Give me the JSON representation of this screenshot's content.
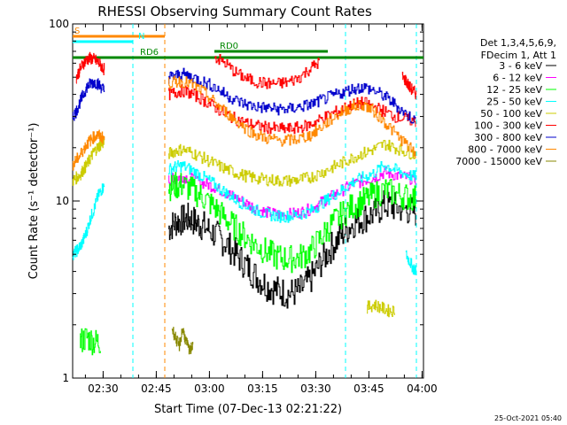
{
  "chart_data": {
    "type": "line",
    "title": "RHESSI Observing Summary Count Rates",
    "xlabel": "Start Time (07-Dec-13 02:21:22)",
    "ylabel": "Count Rate (s⁻¹ detector⁻¹)",
    "yscale": "log",
    "ylim": [
      1,
      100
    ],
    "xlim_minutes": [
      0,
      99
    ],
    "x_tick_labels": [
      "02:30",
      "02:45",
      "03:00",
      "03:15",
      "03:30",
      "03:45",
      "04:00"
    ],
    "y_tick_labels": [
      "1",
      "10",
      "100"
    ],
    "legend_header": [
      "Det 1,3,4,5,6,9,",
      "FDecim 1, Att 1"
    ],
    "legend_position": "right",
    "footer_timestamp": "25-Oct-2021 05:40",
    "series": [
      {
        "name": "3 - 6 keV",
        "color": "#000000",
        "segments": [
          {
            "x": [
              0,
              3,
              5,
              7,
              9,
              10
            ],
            "y": [
              null,
              null,
              null,
              null,
              null,
              null
            ]
          },
          {
            "x": [
              27,
              29,
              31,
              33,
              35,
              37,
              40,
              43,
              46,
              49,
              52,
              55,
              58,
              61,
              64,
              67,
              70,
              73,
              76,
              79,
              82,
              85,
              88,
              91,
              94,
              97
            ],
            "y": [
              7,
              7.6,
              7.8,
              8,
              7.5,
              7.2,
              6.5,
              5.8,
              5.0,
              4.3,
              3.7,
              3.3,
              3.1,
              3.0,
              3.1,
              3.6,
              4.5,
              5.5,
              6.5,
              7.5,
              8.0,
              8.5,
              9.5,
              9.2,
              9.0,
              8.6
            ]
          }
        ]
      },
      {
        "name": "6 - 12 keV",
        "color": "#ff00ff",
        "segments": [
          {
            "x": [
              27,
              29,
              31,
              34,
              37,
              40,
              43,
              46,
              49,
              52,
              55,
              58,
              61,
              64,
              67,
              70,
              73,
              76,
              79,
              82,
              85,
              88,
              91,
              94,
              97
            ],
            "y": [
              13,
              13.5,
              13.8,
              13.2,
              12.6,
              12,
              11.2,
              10.4,
              9.7,
              9.0,
              8.6,
              8.4,
              8.4,
              8.6,
              9.0,
              9.8,
              10.6,
              11.5,
              12.4,
              13.0,
              13.6,
              14.5,
              14.0,
              13.6,
              13.2
            ]
          }
        ]
      },
      {
        "name": "12 - 25 keV",
        "color": "#00ff00",
        "segments": [
          {
            "x": [
              2,
              4,
              6,
              8
            ],
            "y": [
              1.6,
              1.7,
              1.6,
              1.6
            ]
          },
          {
            "x": [
              27,
              29,
              31,
              34,
              37,
              40,
              43,
              46,
              49,
              52,
              55,
              58,
              61,
              64,
              67,
              70,
              73,
              76,
              79,
              82,
              85,
              88,
              91,
              94,
              97
            ],
            "y": [
              12,
              12.2,
              12.3,
              11.4,
              10.4,
              9.2,
              8.0,
              7.0,
              6.2,
              5.6,
              5.1,
              4.8,
              4.7,
              4.8,
              5.2,
              6.2,
              7.4,
              8.4,
              9.4,
              10.0,
              10.8,
              11.5,
              11.0,
              10.6,
              10.3
            ]
          }
        ]
      },
      {
        "name": "25 - 50 keV",
        "color": "#00ffff",
        "segments": [
          {
            "x": [
              0,
              1,
              2,
              3,
              4,
              5,
              6,
              7,
              8,
              9
            ],
            "y": [
              5.0,
              5.2,
              5.5,
              6.0,
              6.8,
              8.0,
              9.0,
              10.5,
              11.5,
              12.2
            ]
          },
          {
            "x": [
              27,
              29,
              31,
              34,
              37,
              40,
              43,
              46,
              49,
              52,
              55,
              58,
              61,
              64,
              67,
              70,
              73,
              76,
              79,
              82,
              85,
              88,
              91,
              94,
              97
            ],
            "y": [
              15,
              15.6,
              15.8,
              14.8,
              13.6,
              12.4,
              11.2,
              10.2,
              9.4,
              8.8,
              8.4,
              8.2,
              8.2,
              8.4,
              8.8,
              9.6,
              10.6,
              11.6,
              12.8,
              13.6,
              14.4,
              16.0,
              15.0,
              14.2,
              13.6
            ]
          },
          {
            "x": [
              94,
              95,
              96,
              97
            ],
            "y": [
              5.0,
              4.6,
              4.2,
              4.0
            ]
          }
        ]
      },
      {
        "name": "50 - 100 keV",
        "color": "#cccc00",
        "segments": [
          {
            "x": [
              0,
              1,
              2,
              3,
              4,
              5,
              6,
              7,
              8,
              9
            ],
            "y": [
              13,
              13.5,
              14,
              15,
              16,
              17.5,
              19,
              20,
              21,
              21.5
            ]
          },
          {
            "x": [
              27,
              29,
              31,
              34,
              37,
              40,
              43,
              46,
              49,
              52,
              55,
              58,
              61,
              64,
              67,
              70,
              73,
              76,
              79,
              82,
              85,
              88,
              91,
              94,
              97
            ],
            "y": [
              18.5,
              19.2,
              19.6,
              18.6,
              17.4,
              16.2,
              15.2,
              14.4,
              13.8,
              13.4,
              13.2,
              13.0,
              13.0,
              13.2,
              13.6,
              14.4,
              15.4,
              16.4,
              17.6,
              18.6,
              19.6,
              21.0,
              20.0,
              19.0,
              18.2
            ]
          },
          {
            "x": [
              83,
              85,
              87,
              89,
              91
            ],
            "y": [
              2.5,
              2.6,
              2.5,
              2.4,
              2.4
            ]
          }
        ]
      },
      {
        "name": "100 - 300 keV",
        "color": "#ff0000",
        "segments": [
          {
            "x": [
              1,
              2,
              3,
              4,
              5,
              6,
              7,
              8,
              9
            ],
            "y": [
              50,
              55,
              60,
              63,
              64,
              63,
              61,
              58,
              55
            ]
          },
          {
            "x": [
              27,
              29,
              31,
              34,
              37,
              40,
              43,
              46,
              49,
              52,
              55,
              58,
              61,
              64,
              67,
              70,
              73,
              76,
              79,
              82,
              85,
              88,
              91,
              94,
              97
            ],
            "y": [
              40,
              41,
              42,
              40,
              37,
              34,
              31,
              29,
              27.5,
              26.5,
              26,
              25.5,
              25.5,
              26,
              27,
              29,
              31,
              33,
              35,
              36,
              34,
              32,
              30,
              29,
              28
            ]
          },
          {
            "x": [
              40,
              43,
              46,
              49,
              52,
              55,
              58,
              61,
              64,
              67,
              70
            ],
            "y": [
              65,
              60,
              53,
              49,
              47,
              46,
              46,
              47,
              50,
              56,
              62
            ]
          },
          {
            "x": [
              93,
              94,
              95,
              96,
              97
            ],
            "y": [
              50,
              48,
              44,
              42,
              40
            ]
          }
        ]
      },
      {
        "name": "300 - 800 keV",
        "color": "#0000cc",
        "segments": [
          {
            "x": [
              0,
              1,
              2,
              3,
              4,
              5,
              6,
              7,
              8,
              9
            ],
            "y": [
              30,
              32,
              36,
              40,
              44,
              46,
              47,
              46,
              44,
              42
            ]
          },
          {
            "x": [
              27,
              29,
              31,
              34,
              37,
              40,
              43,
              46,
              49,
              52,
              55,
              58,
              61,
              64,
              67,
              70,
              73,
              76,
              79,
              82,
              85,
              88,
              91,
              94,
              97
            ],
            "y": [
              50,
              51,
              52,
              50,
              47,
              44,
              40,
              37,
              35,
              34,
              33.5,
              33,
              33,
              34,
              35,
              37,
              39,
              41,
              43,
              44,
              42,
              39,
              35,
              31,
              28
            ]
          }
        ]
      },
      {
        "name": "800 - 7000 keV",
        "color": "#ff8800",
        "segments": [
          {
            "x": [
              0,
              1,
              2,
              3,
              4,
              5,
              6,
              7,
              8,
              9
            ],
            "y": [
              16,
              17,
              18,
              19.5,
              21,
              22,
              23,
              23.5,
              23,
              22.5
            ]
          },
          {
            "x": [
              27,
              29,
              31,
              34,
              37,
              40,
              43,
              46,
              49,
              52,
              55,
              58,
              61,
              64,
              67,
              70,
              73,
              76,
              79,
              82,
              85,
              88,
              91,
              94,
              97
            ],
            "y": [
              46,
              47,
              47.5,
              45,
              41,
              36,
              32,
              28.5,
              25.5,
              23.5,
              22.5,
              22,
              22,
              22.5,
              23.5,
              26,
              29,
              32,
              34,
              35,
              32,
              28,
              24,
              21,
              18
            ]
          }
        ]
      },
      {
        "name": "7000 - 15000 keV",
        "color": "#888800",
        "segments": [
          {
            "x": [
              28,
              29,
              30,
              31,
              32,
              33,
              34
            ],
            "y": [
              1.9,
              1.7,
              1.5,
              1.9,
              1.6,
              1.4,
              1.6
            ]
          }
        ]
      }
    ],
    "attenuator_bars": [
      {
        "label": "S",
        "color": "#ff8800",
        "x_range": [
          0,
          26
        ]
      },
      {
        "label": "N",
        "color": "#00ffff",
        "x_range": [
          0,
          17
        ]
      },
      {
        "label": "RD0",
        "color": "#008800",
        "x_range": [
          40,
          72
        ]
      },
      {
        "label": "RD6",
        "color": "#008800",
        "x_range": [
          0,
          99
        ]
      }
    ],
    "vertical_markers": [
      {
        "x": 17,
        "color": "#00ffff"
      },
      {
        "x": 26,
        "color": "#ff8800"
      },
      {
        "x": 77,
        "color": "#00ffff"
      },
      {
        "x": 97,
        "color": "#00ffff"
      }
    ]
  }
}
